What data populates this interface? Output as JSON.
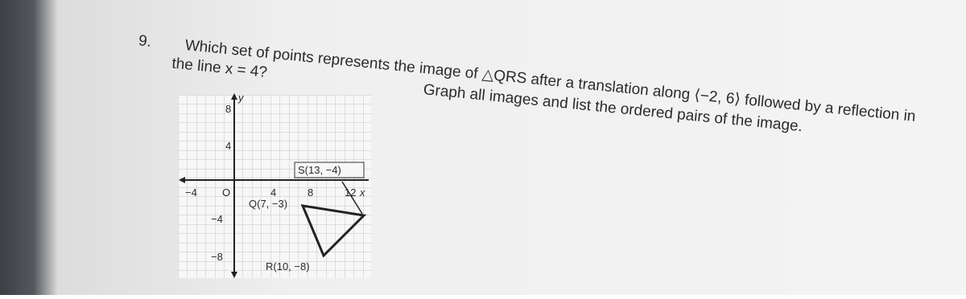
{
  "question": {
    "number": "9.",
    "line1": "Which set of points represents the image of △QRS after a translation along ⟨−2, 6⟩ followed by a reflection in",
    "line2": "the line x = 4?",
    "instruction": "Graph all images and list the ordered pairs of the image."
  },
  "graph": {
    "y_axis_label": "y",
    "x_axis_label": "x",
    "origin": "O",
    "y_labels": [
      "8",
      "4",
      "−4",
      "−8"
    ],
    "x_labels": [
      "−4",
      "4",
      "8",
      "12"
    ],
    "points": {
      "S": "S(13, −4)",
      "Q": "Q(7, −3)",
      "R": "R(10, −8)"
    }
  }
}
